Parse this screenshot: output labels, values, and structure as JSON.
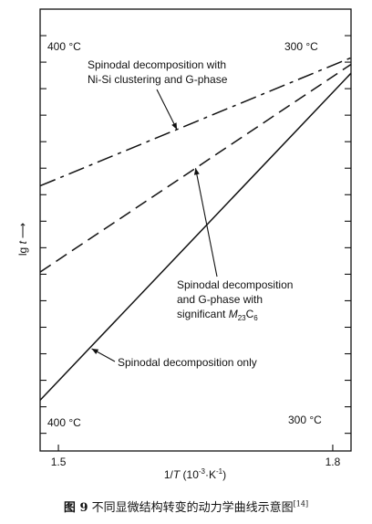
{
  "chart_data": {
    "type": "line",
    "title": "",
    "xlabel": "1/T (10⁻³·K⁻¹)",
    "xlabel_parts": {
      "prefix": "1/",
      "var": "T",
      "suffix": " (10",
      "exp": "-3",
      "unit": "·K",
      "unit_exp": "-1",
      "close": ")"
    },
    "ylabel": "lg t",
    "ylabel_parts": {
      "var": "lg ",
      "italic": "t",
      "arrow": "⟶"
    },
    "xlim": [
      1.48,
      1.82
    ],
    "ylim": [
      0,
      1
    ],
    "xticks": [
      {
        "value": 1.5,
        "label": "1.5"
      },
      {
        "value": 1.8,
        "label": "1.8"
      }
    ],
    "y_minor_ticks": [
      0.04,
      0.1,
      0.16,
      0.22,
      0.28,
      0.34,
      0.4,
      0.46,
      0.52,
      0.58,
      0.64,
      0.7,
      0.76,
      0.82,
      0.88,
      0.94
    ],
    "temperature_labels": [
      {
        "text": "400 °C",
        "position": "top-left"
      },
      {
        "text": "300 °C",
        "position": "top-right"
      },
      {
        "text": "400 °C",
        "position": "bottom-left"
      },
      {
        "text": "300 °C",
        "position": "bottom-right"
      }
    ],
    "series": [
      {
        "style": "dash-dot",
        "x": [
          1.48,
          1.82
        ],
        "y": [
          0.6,
          0.89
        ]
      },
      {
        "style": "dashed",
        "x": [
          1.48,
          1.82
        ],
        "y": [
          0.405,
          0.875
        ]
      },
      {
        "style": "solid",
        "x": [
          1.48,
          1.82
        ],
        "y": [
          0.115,
          0.855
        ]
      }
    ],
    "annotations": [
      {
        "lines": [
          "Spinodal decomposition with",
          "Ni-Si clustering and G-phase"
        ],
        "points_to": 0
      },
      {
        "lines": [
          "Spinodal decomposition",
          "and G-phase with"
        ],
        "third_line": {
          "prefix": "significant ",
          "var": "M",
          "sub1": "23",
          "mid": "C",
          "sub2": "6"
        },
        "points_to": 1
      },
      {
        "lines": [
          "Spinodal decomposition only"
        ],
        "points_to": 2
      }
    ],
    "grid": false,
    "legend": "none"
  },
  "caption": {
    "label": "图 9",
    "text": " 不同显微结构转变的动力学曲线示意图",
    "ref": "[14]"
  }
}
